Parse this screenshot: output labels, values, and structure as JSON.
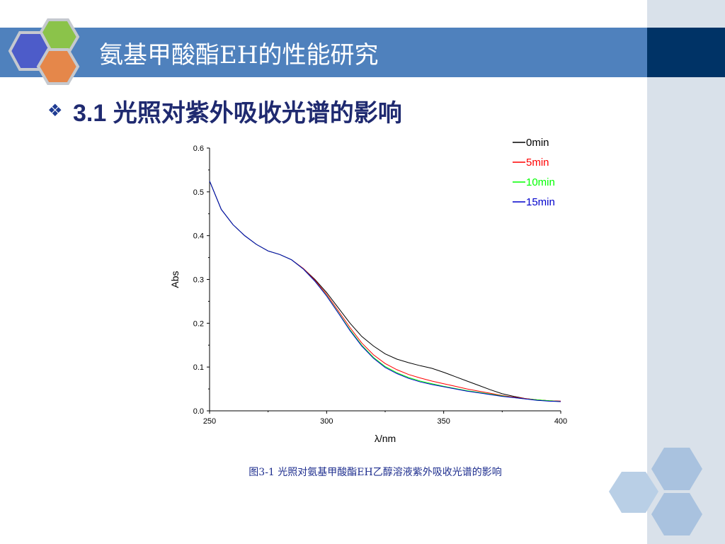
{
  "slide": {
    "title": "氨基甲酸酯EH的性能研究",
    "heading": "3.1 光照对紫外吸收光谱的影响",
    "bullet_icon": "diamond-bullet-icon",
    "caption": "图3-1 光照对氨基甲酸酯EH乙醇溶液紫外吸收光谱的影响"
  },
  "colors": {
    "title_bar": "#4f81bd",
    "title_bar_dark": "#003366",
    "side_panel": "#d9e1ea",
    "heading": "#1f2a70",
    "caption": "#1f2f8f"
  },
  "chart_data": {
    "type": "line",
    "xlabel": "λ/nm",
    "ylabel": "Abs",
    "xlim": [
      250,
      400
    ],
    "ylim": [
      0.0,
      0.6
    ],
    "xticks": [
      "250",
      "300",
      "350",
      "400"
    ],
    "yticks": [
      "0.0",
      "0.1",
      "0.2",
      "0.3",
      "0.4",
      "0.5",
      "0.6"
    ],
    "grid": false,
    "legend_position": "top-right",
    "x": [
      250,
      255,
      260,
      265,
      270,
      275,
      280,
      285,
      290,
      295,
      300,
      305,
      310,
      315,
      320,
      325,
      330,
      335,
      340,
      345,
      350,
      355,
      360,
      365,
      370,
      375,
      380,
      385,
      390,
      395,
      400
    ],
    "series": [
      {
        "name": "0min",
        "color": "#000000",
        "values": [
          0.525,
          0.46,
          0.425,
          0.4,
          0.38,
          0.365,
          0.357,
          0.345,
          0.325,
          0.3,
          0.27,
          0.235,
          0.2,
          0.17,
          0.148,
          0.13,
          0.118,
          0.11,
          0.103,
          0.097,
          0.088,
          0.078,
          0.068,
          0.058,
          0.048,
          0.039,
          0.033,
          0.028,
          0.025,
          0.023,
          0.022
        ]
      },
      {
        "name": "5min",
        "color": "#ff0000",
        "values": [
          0.525,
          0.46,
          0.425,
          0.4,
          0.38,
          0.365,
          0.357,
          0.345,
          0.325,
          0.298,
          0.266,
          0.228,
          0.19,
          0.155,
          0.128,
          0.108,
          0.094,
          0.083,
          0.075,
          0.068,
          0.062,
          0.056,
          0.05,
          0.045,
          0.04,
          0.035,
          0.031,
          0.028,
          0.025,
          0.023,
          0.022
        ]
      },
      {
        "name": "10min",
        "color": "#00ff00",
        "values": [
          0.525,
          0.46,
          0.425,
          0.4,
          0.38,
          0.365,
          0.357,
          0.345,
          0.324,
          0.296,
          0.263,
          0.224,
          0.185,
          0.15,
          0.122,
          0.101,
          0.087,
          0.076,
          0.068,
          0.062,
          0.056,
          0.051,
          0.046,
          0.042,
          0.038,
          0.034,
          0.03,
          0.027,
          0.025,
          0.023,
          0.021
        ]
      },
      {
        "name": "15min",
        "color": "#0000cc",
        "values": [
          0.525,
          0.46,
          0.425,
          0.4,
          0.38,
          0.365,
          0.357,
          0.345,
          0.324,
          0.296,
          0.262,
          0.223,
          0.183,
          0.148,
          0.12,
          0.099,
          0.085,
          0.074,
          0.066,
          0.06,
          0.055,
          0.05,
          0.045,
          0.041,
          0.037,
          0.033,
          0.03,
          0.027,
          0.024,
          0.022,
          0.021
        ]
      }
    ]
  }
}
